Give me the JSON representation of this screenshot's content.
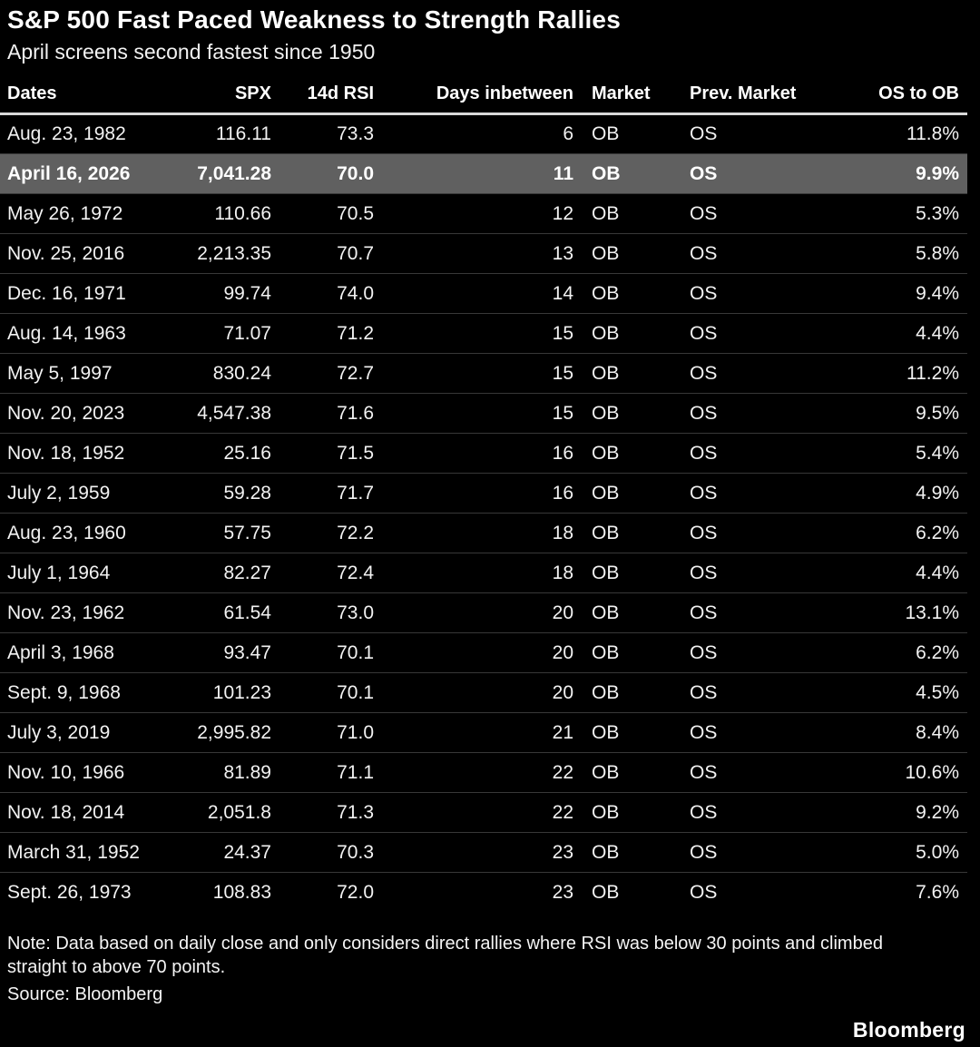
{
  "header": {
    "title": "S&P 500 Fast Paced Weakness to Strength Rallies",
    "subtitle": "April screens second fastest since 1950"
  },
  "chart_data": {
    "type": "table",
    "title": "S&P 500 Fast Paced Weakness to Strength Rallies",
    "subtitle": "April screens second fastest since 1950",
    "columns": [
      "Dates",
      "SPX",
      "14d RSI",
      "Days inbetween",
      "Market",
      "Prev. Market",
      "OS to OB"
    ],
    "highlighted_row_index": 1,
    "rows": [
      {
        "date": "Aug. 23, 1982",
        "spx": "116.11",
        "rsi": "73.3",
        "days": "6",
        "market": "OB",
        "prev_market": "OS",
        "os_to_ob": "11.8%",
        "highlight": false
      },
      {
        "date": "April 16, 2026",
        "spx": "7,041.28",
        "rsi": "70.0",
        "days": "11",
        "market": "OB",
        "prev_market": "OS",
        "os_to_ob": "9.9%",
        "highlight": true
      },
      {
        "date": "May 26, 1972",
        "spx": "110.66",
        "rsi": "70.5",
        "days": "12",
        "market": "OB",
        "prev_market": "OS",
        "os_to_ob": "5.3%",
        "highlight": false
      },
      {
        "date": "Nov. 25, 2016",
        "spx": "2,213.35",
        "rsi": "70.7",
        "days": "13",
        "market": "OB",
        "prev_market": "OS",
        "os_to_ob": "5.8%",
        "highlight": false
      },
      {
        "date": "Dec. 16, 1971",
        "spx": "99.74",
        "rsi": "74.0",
        "days": "14",
        "market": "OB",
        "prev_market": "OS",
        "os_to_ob": "9.4%",
        "highlight": false
      },
      {
        "date": "Aug. 14, 1963",
        "spx": "71.07",
        "rsi": "71.2",
        "days": "15",
        "market": "OB",
        "prev_market": "OS",
        "os_to_ob": "4.4%",
        "highlight": false
      },
      {
        "date": "May 5, 1997",
        "spx": "830.24",
        "rsi": "72.7",
        "days": "15",
        "market": "OB",
        "prev_market": "OS",
        "os_to_ob": "11.2%",
        "highlight": false
      },
      {
        "date": "Nov. 20, 2023",
        "spx": "4,547.38",
        "rsi": "71.6",
        "days": "15",
        "market": "OB",
        "prev_market": "OS",
        "os_to_ob": "9.5%",
        "highlight": false
      },
      {
        "date": "Nov. 18, 1952",
        "spx": "25.16",
        "rsi": "71.5",
        "days": "16",
        "market": "OB",
        "prev_market": "OS",
        "os_to_ob": "5.4%",
        "highlight": false
      },
      {
        "date": "July 2, 1959",
        "spx": "59.28",
        "rsi": "71.7",
        "days": "16",
        "market": "OB",
        "prev_market": "OS",
        "os_to_ob": "4.9%",
        "highlight": false
      },
      {
        "date": "Aug. 23, 1960",
        "spx": "57.75",
        "rsi": "72.2",
        "days": "18",
        "market": "OB",
        "prev_market": "OS",
        "os_to_ob": "6.2%",
        "highlight": false
      },
      {
        "date": "July 1, 1964",
        "spx": "82.27",
        "rsi": "72.4",
        "days": "18",
        "market": "OB",
        "prev_market": "OS",
        "os_to_ob": "4.4%",
        "highlight": false
      },
      {
        "date": "Nov. 23, 1962",
        "spx": "61.54",
        "rsi": "73.0",
        "days": "20",
        "market": "OB",
        "prev_market": "OS",
        "os_to_ob": "13.1%",
        "highlight": false
      },
      {
        "date": "April 3, 1968",
        "spx": "93.47",
        "rsi": "70.1",
        "days": "20",
        "market": "OB",
        "prev_market": "OS",
        "os_to_ob": "6.2%",
        "highlight": false
      },
      {
        "date": "Sept. 9, 1968",
        "spx": "101.23",
        "rsi": "70.1",
        "days": "20",
        "market": "OB",
        "prev_market": "OS",
        "os_to_ob": "4.5%",
        "highlight": false
      },
      {
        "date": "July 3, 2019",
        "spx": "2,995.82",
        "rsi": "71.0",
        "days": "21",
        "market": "OB",
        "prev_market": "OS",
        "os_to_ob": "8.4%",
        "highlight": false
      },
      {
        "date": "Nov. 10, 1966",
        "spx": "81.89",
        "rsi": "71.1",
        "days": "22",
        "market": "OB",
        "prev_market": "OS",
        "os_to_ob": "10.6%",
        "highlight": false
      },
      {
        "date": "Nov. 18, 2014",
        "spx": "2,051.8",
        "rsi": "71.3",
        "days": "22",
        "market": "OB",
        "prev_market": "OS",
        "os_to_ob": "9.2%",
        "highlight": false
      },
      {
        "date": "March 31, 1952",
        "spx": "24.37",
        "rsi": "70.3",
        "days": "23",
        "market": "OB",
        "prev_market": "OS",
        "os_to_ob": "5.0%",
        "highlight": false
      },
      {
        "date": "Sept. 26, 1973",
        "spx": "108.83",
        "rsi": "72.0",
        "days": "23",
        "market": "OB",
        "prev_market": "OS",
        "os_to_ob": "7.6%",
        "highlight": false
      }
    ]
  },
  "footer": {
    "note": "Note: Data based on daily close and only considers direct rallies where RSI was below 30 points and climbed straight to above 70 points.",
    "source": "Source: Bloomberg",
    "logo": "Bloomberg"
  },
  "colors": {
    "background": "#000000",
    "text": "#f2f2f2",
    "title_text": "#ffffff",
    "highlight_row_bg": "#606060",
    "row_divider": "#383838",
    "header_underline": "#d9d9d9"
  }
}
